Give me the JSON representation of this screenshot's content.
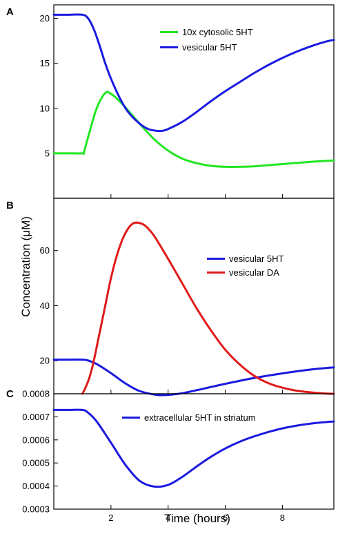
{
  "figure": {
    "ylabel": "Concentration (μM)",
    "xlabel": "Time (hours)"
  },
  "chart_data": [
    {
      "type": "line",
      "panel_label": "A",
      "xlim": [
        0,
        9.8
      ],
      "ylim": [
        0,
        21.5
      ],
      "yticks": [
        5,
        10,
        15,
        20
      ],
      "xticks": [
        2,
        4,
        6,
        8
      ],
      "legend_position": "top-right",
      "series": [
        {
          "name": "10x cytosolic 5HT",
          "color": "#22e522",
          "x": [
            0,
            0.5,
            1.0,
            1.05,
            1.2,
            1.5,
            1.8,
            2.0,
            2.3,
            2.7,
            3.0,
            3.5,
            4.0,
            4.5,
            5.0,
            5.5,
            6.0,
            6.5,
            7.0,
            8.0,
            9.0,
            9.8
          ],
          "y": [
            5.0,
            5.0,
            5.0,
            5.1,
            6.8,
            10.0,
            11.7,
            11.6,
            10.8,
            9.4,
            8.3,
            6.6,
            5.3,
            4.4,
            3.9,
            3.6,
            3.5,
            3.5,
            3.55,
            3.8,
            4.05,
            4.2
          ]
        },
        {
          "name": "vesicular 5HT",
          "color": "#1a1ae0",
          "x": [
            0,
            0.5,
            1.0,
            1.2,
            1.4,
            1.6,
            1.8,
            2.0,
            2.3,
            2.6,
            3.0,
            3.3,
            3.6,
            3.8,
            4.0,
            4.5,
            5.0,
            5.5,
            6.0,
            6.5,
            7.0,
            7.5,
            8.0,
            8.5,
            9.0,
            9.5,
            9.8
          ],
          "y": [
            20.4,
            20.4,
            20.4,
            20.0,
            18.8,
            17.0,
            15.0,
            13.3,
            11.2,
            9.6,
            8.3,
            7.7,
            7.5,
            7.5,
            7.7,
            8.5,
            9.6,
            10.8,
            11.9,
            12.9,
            13.9,
            14.8,
            15.6,
            16.3,
            16.9,
            17.4,
            17.6
          ]
        }
      ]
    },
    {
      "type": "line",
      "panel_label": "B",
      "xlim": [
        0,
        9.8
      ],
      "ylim": [
        8,
        79
      ],
      "yticks": [
        20,
        40,
        60
      ],
      "xticks": [
        2,
        4,
        6,
        8
      ],
      "legend_position": "middle-right",
      "series": [
        {
          "name": "vesicular 5HT",
          "color": "#1a1ae0",
          "x": [
            0,
            0.5,
            1.0,
            1.2,
            1.5,
            2.0,
            2.5,
            3.0,
            3.6,
            4.0,
            4.5,
            5.0,
            6.0,
            7.0,
            8.0,
            9.0,
            9.8
          ],
          "y": [
            20.4,
            20.4,
            20.4,
            20.1,
            18.8,
            15.5,
            11.8,
            9.0,
            7.6,
            7.6,
            8.2,
            9.3,
            11.6,
            13.7,
            15.4,
            16.8,
            17.6
          ]
        },
        {
          "name": "vesicular DA",
          "color": "#e01a1a",
          "x": [
            1.0,
            1.1,
            1.25,
            1.4,
            1.6,
            1.8,
            2.0,
            2.2,
            2.4,
            2.6,
            2.8,
            3.0,
            3.2,
            3.5,
            4.0,
            4.5,
            5.0,
            5.5,
            6.0,
            6.5,
            7.0,
            7.5,
            8.0,
            8.5,
            9.0,
            9.5,
            9.8
          ],
          "y": [
            8,
            10,
            14,
            20,
            30,
            40,
            50,
            58,
            64,
            68,
            70,
            70,
            69,
            65.5,
            57,
            48,
            39,
            31,
            24,
            18.7,
            14.6,
            11.9,
            10.2,
            9.1,
            8.5,
            8.1,
            8.0
          ]
        }
      ]
    },
    {
      "type": "line",
      "panel_label": "C",
      "xlim": [
        0,
        9.8
      ],
      "ylim": [
        0.0003,
        0.0008
      ],
      "yticks": [
        "0.0003",
        "0.0004",
        "0.0005",
        "0.0006",
        "0.0007",
        "0.0008"
      ],
      "xticks": [
        2,
        4,
        6,
        8
      ],
      "legend_position": "top-center",
      "series": [
        {
          "name": "extracellular 5HT in striatum",
          "color": "#1a1ae0",
          "x": [
            0,
            0.5,
            1.0,
            1.2,
            1.5,
            2.0,
            2.5,
            3.0,
            3.5,
            4.0,
            4.5,
            5.0,
            5.5,
            6.0,
            6.5,
            7.0,
            7.5,
            8.0,
            8.5,
            9.0,
            9.5,
            9.8
          ],
          "y": [
            0.00073,
            0.00073,
            0.00073,
            0.000718,
            0.00068,
            0.000588,
            0.000493,
            0.000423,
            0.000398,
            0.000405,
            0.00044,
            0.000485,
            0.000527,
            0.000563,
            0.000592,
            0.000615,
            0.000634,
            0.00065,
            0.000662,
            0.000671,
            0.000677,
            0.00068
          ]
        }
      ]
    }
  ]
}
